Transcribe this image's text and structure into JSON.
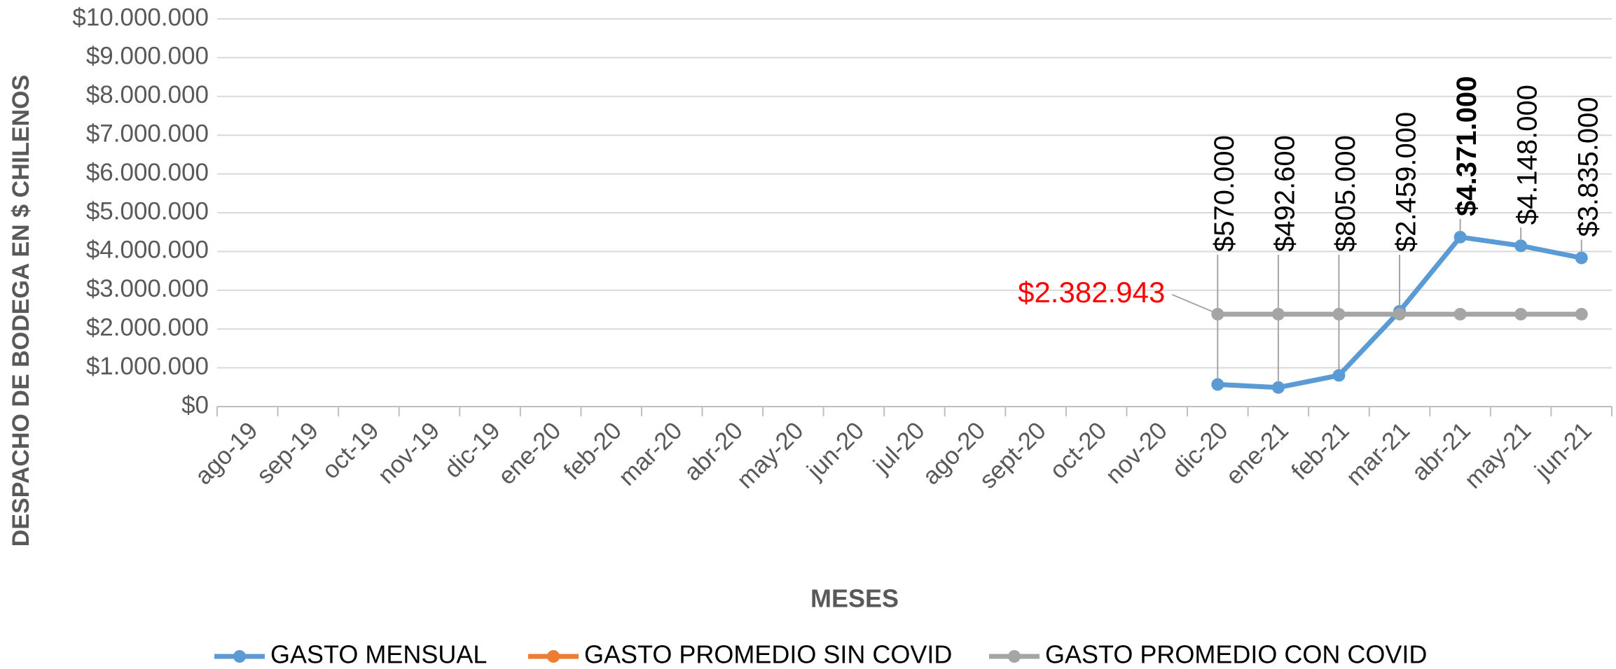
{
  "chart_data": {
    "type": "line",
    "y_axis_label": "DESPACHO DE BODEGA EN $ CHILENOS",
    "x_axis_label": "MESES",
    "categories": [
      "ago-19",
      "sep-19",
      "oct-19",
      "nov-19",
      "dic-19",
      "ene-20",
      "feb-20",
      "mar-20",
      "abr-20",
      "may-20",
      "jun-20",
      "jul-20",
      "ago-20",
      "sept-20",
      "oct-20",
      "nov-20",
      "dic-20",
      "ene-21",
      "feb-21",
      "mar-21",
      "abr-21",
      "may-21",
      "jun-21"
    ],
    "series": [
      {
        "name": "GASTO MENSUAL",
        "color": "#5b9bd5",
        "values": [
          null,
          null,
          null,
          null,
          null,
          null,
          null,
          null,
          null,
          null,
          null,
          null,
          null,
          null,
          null,
          null,
          570000,
          492600,
          805000,
          2459000,
          4371000,
          4148000,
          3835000
        ],
        "value_labels": [
          null,
          null,
          null,
          null,
          null,
          null,
          null,
          null,
          null,
          null,
          null,
          null,
          null,
          null,
          null,
          null,
          "$570.000",
          "$492.600",
          "$805.000",
          "$2.459.000",
          "$4.371.000",
          "$4.148.000",
          "$3.835.000"
        ]
      },
      {
        "name": "GASTO PROMEDIO SIN COVID",
        "color": "#ed7d31",
        "values": [
          null,
          null,
          null,
          null,
          null,
          null,
          null,
          null,
          null,
          null,
          null,
          null,
          null,
          null,
          null,
          null,
          null,
          null,
          null,
          null,
          null,
          null,
          null
        ]
      },
      {
        "name": "GASTO PROMEDIO CON COVID",
        "color": "#a5a5a5",
        "values": [
          null,
          null,
          null,
          null,
          null,
          null,
          null,
          null,
          null,
          null,
          null,
          null,
          null,
          null,
          null,
          null,
          2382943,
          2382943,
          2382943,
          2382943,
          2382943,
          2382943,
          2382943
        ],
        "value_labels": [
          null,
          null,
          null,
          null,
          null,
          null,
          null,
          null,
          null,
          null,
          null,
          null,
          null,
          null,
          null,
          null,
          "$2.382.943",
          null,
          null,
          null,
          null,
          null,
          null
        ],
        "label_color": "#ff0000"
      }
    ],
    "ylim": [
      0,
      10000000
    ],
    "yticks": [
      {
        "value": 0,
        "label": "$0"
      },
      {
        "value": 1000000,
        "label": "$1.000.000"
      },
      {
        "value": 2000000,
        "label": "$2.000.000"
      },
      {
        "value": 3000000,
        "label": "$3.000.000"
      },
      {
        "value": 4000000,
        "label": "$4.000.000"
      },
      {
        "value": 5000000,
        "label": "$5.000.000"
      },
      {
        "value": 6000000,
        "label": "$6.000.000"
      },
      {
        "value": 7000000,
        "label": "$7.000.000"
      },
      {
        "value": 8000000,
        "label": "$8.000.000"
      },
      {
        "value": 9000000,
        "label": "$9.000.000"
      },
      {
        "value": 10000000,
        "label": "$10.000.000"
      }
    ],
    "grid": true,
    "legend": "bottom"
  }
}
